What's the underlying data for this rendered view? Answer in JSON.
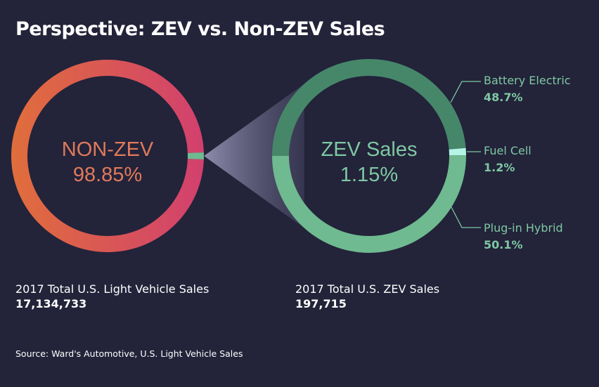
{
  "title": "Perspective: ZEV vs. Non-ZEV Sales",
  "colors": {
    "background": "#23233a",
    "non_zev_start": "#e06e3c",
    "non_zev_end": "#d2406e",
    "battery_electric": "#46876a",
    "fuel_cell": "#b4f5e6",
    "plug_in_hybrid": "#6fba90",
    "zev_text": "#7ec8a2",
    "non_zev_text": "#e07a5a"
  },
  "chart_data": [
    {
      "type": "pie",
      "variant": "donut",
      "center_label": "NON-ZEV",
      "center_value": "98.85%",
      "slices": [
        {
          "name": "NON-ZEV",
          "value": 98.85
        },
        {
          "name": "ZEV",
          "value": 1.15
        }
      ],
      "caption": "2017 Total U.S. Light Vehicle Sales",
      "total": "17,134,733"
    },
    {
      "type": "pie",
      "variant": "donut",
      "center_label": "ZEV Sales",
      "center_value": "1.15%",
      "slices": [
        {
          "name": "Battery Electric",
          "value": 48.7,
          "label": "48.7%"
        },
        {
          "name": "Fuel Cell",
          "value": 1.2,
          "label": "1.2%"
        },
        {
          "name": "Plug-in Hybrid",
          "value": 50.1,
          "label": "50.1%"
        }
      ],
      "caption": "2017 Total U.S. ZEV Sales",
      "total": "197,715"
    }
  ],
  "source": "Source: Ward's Automotive, U.S. Light Vehicle Sales"
}
